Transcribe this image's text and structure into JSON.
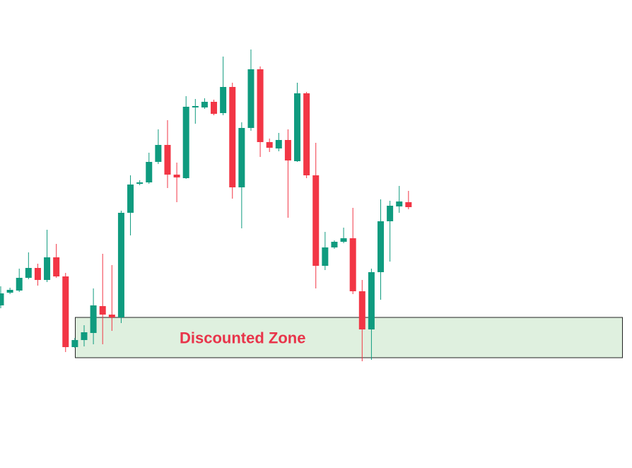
{
  "chart_data": {
    "type": "candlestick",
    "ylim": [
      0,
      662
    ],
    "up_color": "#0f9b7f",
    "down_color": "#f23645",
    "open": [
      230,
      248,
      251,
      269,
      283,
      266,
      298,
      271,
      171,
      181,
      191,
      229,
      217,
      213,
      361,
      402,
      404,
      433,
      457,
      415,
      410,
      510,
      510,
      518,
      502,
      539,
      397,
      481,
      564,
      461,
      452,
      464,
      434,
      530,
      414,
      286,
      312,
      320,
      325,
      250,
      196,
      277,
      349,
      370,
      376
    ],
    "high": [
      257,
      255,
      282,
      305,
      289,
      337,
      317,
      276,
      184,
      202,
      254,
      303,
      287,
      364,
      414,
      407,
      446,
      479,
      492,
      432,
      526,
      522,
      523,
      521,
      582,
      545,
      489,
      592,
      568,
      466,
      474,
      479,
      545,
      532,
      460,
      334,
      322,
      340,
      368,
      266,
      282,
      380,
      378,
      399,
      392
    ],
    "low": [
      226,
      246,
      249,
      267,
      258,
      263,
      269,
      164,
      170,
      172,
      175,
      175,
      194,
      205,
      329,
      400,
      402,
      430,
      396,
      376,
      409,
      487,
      508,
      499,
      499,
      381,
      339,
      477,
      440,
      447,
      448,
      354,
      433,
      410,
      254,
      280,
      310,
      318,
      246,
      151,
      153,
      238,
      292,
      361,
      366
    ],
    "close": [
      247,
      252,
      269,
      283,
      266,
      298,
      271,
      171,
      181,
      192,
      230,
      217,
      213,
      361,
      401,
      404,
      433,
      457,
      415,
      411,
      511,
      512,
      518,
      501,
      539,
      397,
      481,
      564,
      461,
      453,
      464,
      435,
      530,
      414,
      286,
      312,
      320,
      325,
      250,
      196,
      277,
      349,
      371,
      377,
      369
    ],
    "zone": {
      "label": "Discounted Zone",
      "top": 213,
      "bottom": 156,
      "fill": "#dff0df",
      "stroke": "#222222",
      "label_color": "#e8344a"
    }
  }
}
